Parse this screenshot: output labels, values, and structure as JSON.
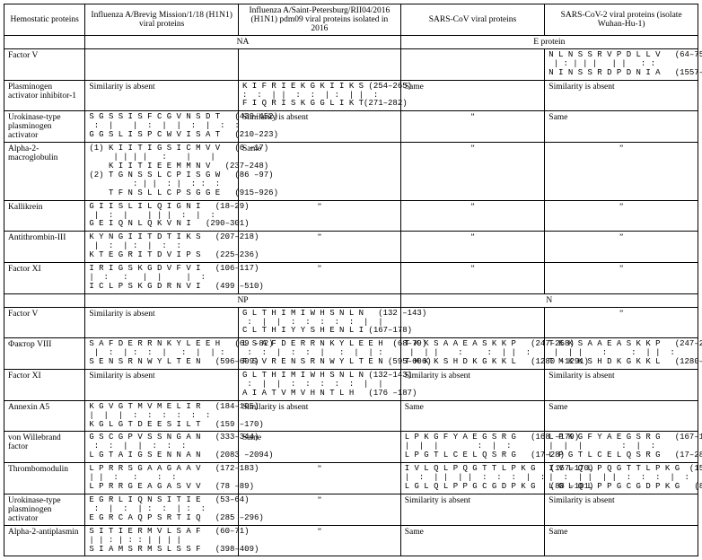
{
  "headers": {
    "col0": "Hemostatic proteins",
    "col1": "Influenza A/Brevig Mission/1/18 (H1N1) viral proteins",
    "col2": "Influenza A/Saint-Petersburg/RII04/2016 (H1N1) pdm09 viral proteins isolated in 2016",
    "col3": "SARS-CoV viral proteins",
    "col4": "SARS-CoV-2 viral proteins (isolate Wuhan-Hu-1)"
  },
  "section1": {
    "left": "NA",
    "right": "E protein"
  },
  "rows1": [
    {
      "name": "Factor V",
      "c1": "",
      "c2": "",
      "c3": "",
      "c4": "N L N S S R V P D L L V   (64–75)\n | : | | |   | |   : :\nN I N S S R D P D N I A   (1557–1568)"
    },
    {
      "name": "Plasminogen activator inhibitor-1",
      "c1": "Similarity is absent",
      "c2": "K I F R I E K G K I I K S (254–265)\n:  :  | |  :  :  | :  | |  :\nF I Q R I S K G G L I K T(271–282)",
      "c3": "Same",
      "c4": "Similarity is absent"
    },
    {
      "name": "Urokinase-type plasminogen activator",
      "c1": "S G S S I S F C G V N S D T   (439–452)\n :  |    |  :  |  |  :  |  :  :\nG G S L I S P C W V I S A T   (210–223)",
      "c2": "Similarity is absent",
      "c3": "”",
      "c4": "Same"
    },
    {
      "name": "Alpha-2-macroglobulin",
      "c1": "(1) K I I T I G S I C M V V   (6 –17)\n     | | | |   :    |    |\n    K I I T I E E M M N V   (237–248)\n(2) T G N S S L C P I S G W   (86 –97)\n         : | |  : |  : :  :\n    T F N S L L C P S G G E   (915–926)",
      "c2": "Same",
      "c3": "”",
      "c4": "”"
    },
    {
      "name": "Kallikrein",
      "c1": "G I I S L I L Q I G N I   (18–29)\n |  :  |    | | |  :  |  :\nG E I Q N L Q K V N I   (290–301)",
      "c2": "”",
      "c3": "”",
      "c4": "”"
    },
    {
      "name": "Antithrombin-III",
      "c1": "K Y N G I I T D T I K S   (207–218)\n |  :  | :  |  :  :\nK T E G R I T D V I P S   (225–236)",
      "c2": "”",
      "c3": "”",
      "c4": "”"
    },
    {
      "name": "Factor XI",
      "c1": "I R I G S K G D V F V I   (106–117)\n|  :   :   |  |     |  :\nI C L P S K G D R N V I   (499 –510)",
      "c2": "”",
      "c3": "”",
      "c4": "”"
    }
  ],
  "section2": {
    "left": "NP",
    "right": "N"
  },
  "rows2": [
    {
      "name": "Factor V",
      "c1": "Similarity is absent",
      "c2": "G L T H I M I W H S N L N   (132 –143)\n :  |  |  :  :  :  :  :  |  |\nC L T H I Y Y S H E N L I (167–178)",
      "c3": "",
      "c4": "”"
    },
    {
      "name": "Фактор VIII",
      "c1": "S A F D E R R N K Y L E E H   (69 –82)\n |  :  | :  :  |   :  |  | :\nS E N S R N W Y L T E N   (596–609)",
      "c2": "L S A F D E R R N K Y L E E H  (68–79)\n :  :  |  :  :  |   :  |  | :\nF S V R E N S R N W Y L T E N (595–606)",
      "c3": "T K K S A A E A S K K P   (247–258)\n |  | |    :     :  | |  :\nT M K K S H D K G K K L   (1280 –1291)",
      "c4": "T K K S A A E A S K K P   (247–258)\n |  | |    :     :  | |  :\nT M K K S H D K G K K L   (1280–1291)"
    },
    {
      "name": "Factor XI",
      "c1": "Similarity is absent",
      "c2": "G L T H I M I W H S N L N (132–143)\n :  |  |  :  :  :  :  :  |  |\nA I A T V M V H N T L H   (176 –187)",
      "c3": "Similarity is absent",
      "c4": "Similarity is absent"
    },
    {
      "name": "Annexin A5",
      "c1": "K G V G T M V M E L I R   (184–195)\n|  |  |  :  :  :  :  :  :\nK G L G T D E E S I L T   (159 –170)",
      "c2": "Similarity is absent",
      "c3": "Same",
      "c4": "Same"
    },
    {
      "name": "von Willebrand factor",
      "c1": "G S C G P V S S N G A N   (333–344)\n :  :  |  |  :  :  :\nL G T A I G S E N N A N   (2083 –2094)",
      "c2": "Same",
      "c3": "L P K G F Y A E G S R G   (168 –179)\n|  |  |        :  |  :\nL P G T L C E L Q S R G   (17–28)",
      "c4": "L P K G F Y A E G S R G   (167–178)\n|  |  |        :  |  :\nL P G T L C E L Q S R G   (17–28)"
    },
    {
      "name": "Thrombomodulin",
      "c1": "L P R R S G A A G A A V   (172–183)\n| |  :   :    :  :\nL P R R G E A G A S V V   (78 –89)",
      "c2": "”",
      "c3": "I V L Q L P Q G T T L P K G   (157–170)\n|  :  | |  | |  :  :  :  |  :\nL G L Q L P P G C G D P K G   (88 –101)",
      "c4": "I V L Q L P Q G T T L P K G  (157–170)\n|  :  | |  | |  :  :  :  |  :\nL G L Q L P P G C G D P K G   (88 –101)"
    },
    {
      "name": "Urokinase-type plasminogen activator",
      "c1": "E G R L I Q N S I T I E   (53–64)\n :  |  :  | :  :  | :  :\nE G R C A Q P S R T I Q   (285 –296)",
      "c2": "”",
      "c3": "Similarity is absent",
      "c4": "Similarity is absent"
    },
    {
      "name": "Alpha-2-antiplasmin",
      "c1": "S I T I E R M V L S A F   (60–71)\n| | : | : : | | | |\nS I A M S R M S L S S F   (398–409)",
      "c2": "”",
      "c3": "Same",
      "c4": "Same"
    }
  ]
}
